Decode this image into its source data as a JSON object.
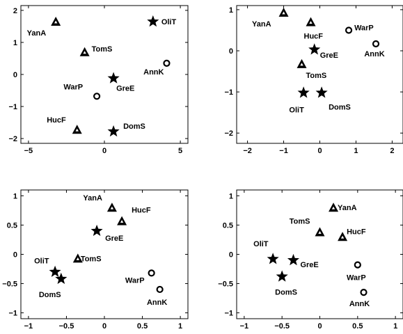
{
  "chart_data": [
    {
      "type": "scatter",
      "xlim": [
        -5.5,
        5.5
      ],
      "ylim": [
        -2.15,
        2.15
      ],
      "xticks": [
        -5,
        0,
        5
      ],
      "yticks": [
        -2,
        -1,
        0,
        1,
        2
      ],
      "grid": false,
      "points": [
        {
          "label": "OliT",
          "marker": "star",
          "x": 3.2,
          "y": 1.65
        },
        {
          "label": "YanA",
          "marker": "triangle",
          "x": -3.2,
          "y": 1.65
        },
        {
          "label": "TomS",
          "marker": "triangle",
          "x": -1.3,
          "y": 0.7
        },
        {
          "label": "AnnK",
          "marker": "circle",
          "x": 4.1,
          "y": 0.35
        },
        {
          "label": "GreE",
          "marker": "star",
          "x": 0.6,
          "y": -0.12
        },
        {
          "label": "WarP",
          "marker": "circle",
          "x": -0.5,
          "y": -0.68
        },
        {
          "label": "HucF",
          "marker": "triangle",
          "x": -1.8,
          "y": -1.72
        },
        {
          "label": "DomS",
          "marker": "star",
          "x": 0.6,
          "y": -1.78
        }
      ]
    },
    {
      "type": "scatter",
      "xlim": [
        -2.3,
        2.3
      ],
      "ylim": [
        -2.25,
        1.1
      ],
      "xticks": [
        -2,
        -1,
        0,
        1,
        2
      ],
      "yticks": [
        -2,
        -1,
        0,
        1
      ],
      "grid": false,
      "points": [
        {
          "label": "YanA",
          "marker": "triangle",
          "x": -1.0,
          "y": 0.93
        },
        {
          "label": "HucF",
          "marker": "triangle",
          "x": -0.25,
          "y": 0.7
        },
        {
          "label": "WarP",
          "marker": "circle",
          "x": 0.8,
          "y": 0.5
        },
        {
          "label": "AnnK",
          "marker": "circle",
          "x": 1.55,
          "y": 0.17
        },
        {
          "label": "GreE",
          "marker": "star",
          "x": -0.15,
          "y": 0.03
        },
        {
          "label": "TomS",
          "marker": "triangle",
          "x": -0.5,
          "y": -0.32
        },
        {
          "label": "OliT",
          "marker": "star",
          "x": -0.45,
          "y": -1.02
        },
        {
          "label": "DomS",
          "marker": "star",
          "x": 0.05,
          "y": -1.02
        }
      ]
    },
    {
      "type": "scatter",
      "xlim": [
        -1.1,
        1.1
      ],
      "ylim": [
        -1.1,
        1.1
      ],
      "xticks": [
        -1,
        -0.5,
        0,
        0.5,
        1
      ],
      "yticks": [
        -1,
        -0.5,
        0,
        0.5,
        1
      ],
      "grid": false,
      "points": [
        {
          "label": "YanA",
          "marker": "triangle",
          "x": 0.1,
          "y": 0.8
        },
        {
          "label": "HucF",
          "marker": "triangle",
          "x": 0.23,
          "y": 0.57
        },
        {
          "label": "GreE",
          "marker": "star",
          "x": -0.1,
          "y": 0.4
        },
        {
          "label": "TomS",
          "marker": "triangle",
          "x": -0.35,
          "y": -0.07
        },
        {
          "label": "OliT",
          "marker": "star",
          "x": -0.65,
          "y": -0.3
        },
        {
          "label": "DomS",
          "marker": "star",
          "x": -0.57,
          "y": -0.42
        },
        {
          "label": "WarP",
          "marker": "circle",
          "x": 0.62,
          "y": -0.32
        },
        {
          "label": "AnnK",
          "marker": "circle",
          "x": 0.73,
          "y": -0.6
        }
      ]
    },
    {
      "type": "scatter",
      "xlim": [
        -1.1,
        1.1
      ],
      "ylim": [
        -1.1,
        1.1
      ],
      "xticks": [
        -1,
        -0.5,
        0,
        0.5,
        1
      ],
      "yticks": [
        -1,
        -0.5,
        0,
        0.5,
        1
      ],
      "grid": false,
      "points": [
        {
          "label": "YanA",
          "marker": "triangle",
          "x": 0.18,
          "y": 0.8
        },
        {
          "label": "TomS",
          "marker": "triangle",
          "x": 0.0,
          "y": 0.38
        },
        {
          "label": "HucF",
          "marker": "triangle",
          "x": 0.3,
          "y": 0.3
        },
        {
          "label": "OliT",
          "marker": "star",
          "x": -0.62,
          "y": -0.08
        },
        {
          "label": "GreE",
          "marker": "star",
          "x": -0.35,
          "y": -0.1
        },
        {
          "label": "DomS",
          "marker": "star",
          "x": -0.5,
          "y": -0.38
        },
        {
          "label": "WarP",
          "marker": "circle",
          "x": 0.5,
          "y": -0.18
        },
        {
          "label": "AnnK",
          "marker": "circle",
          "x": 0.58,
          "y": -0.65
        }
      ]
    }
  ]
}
